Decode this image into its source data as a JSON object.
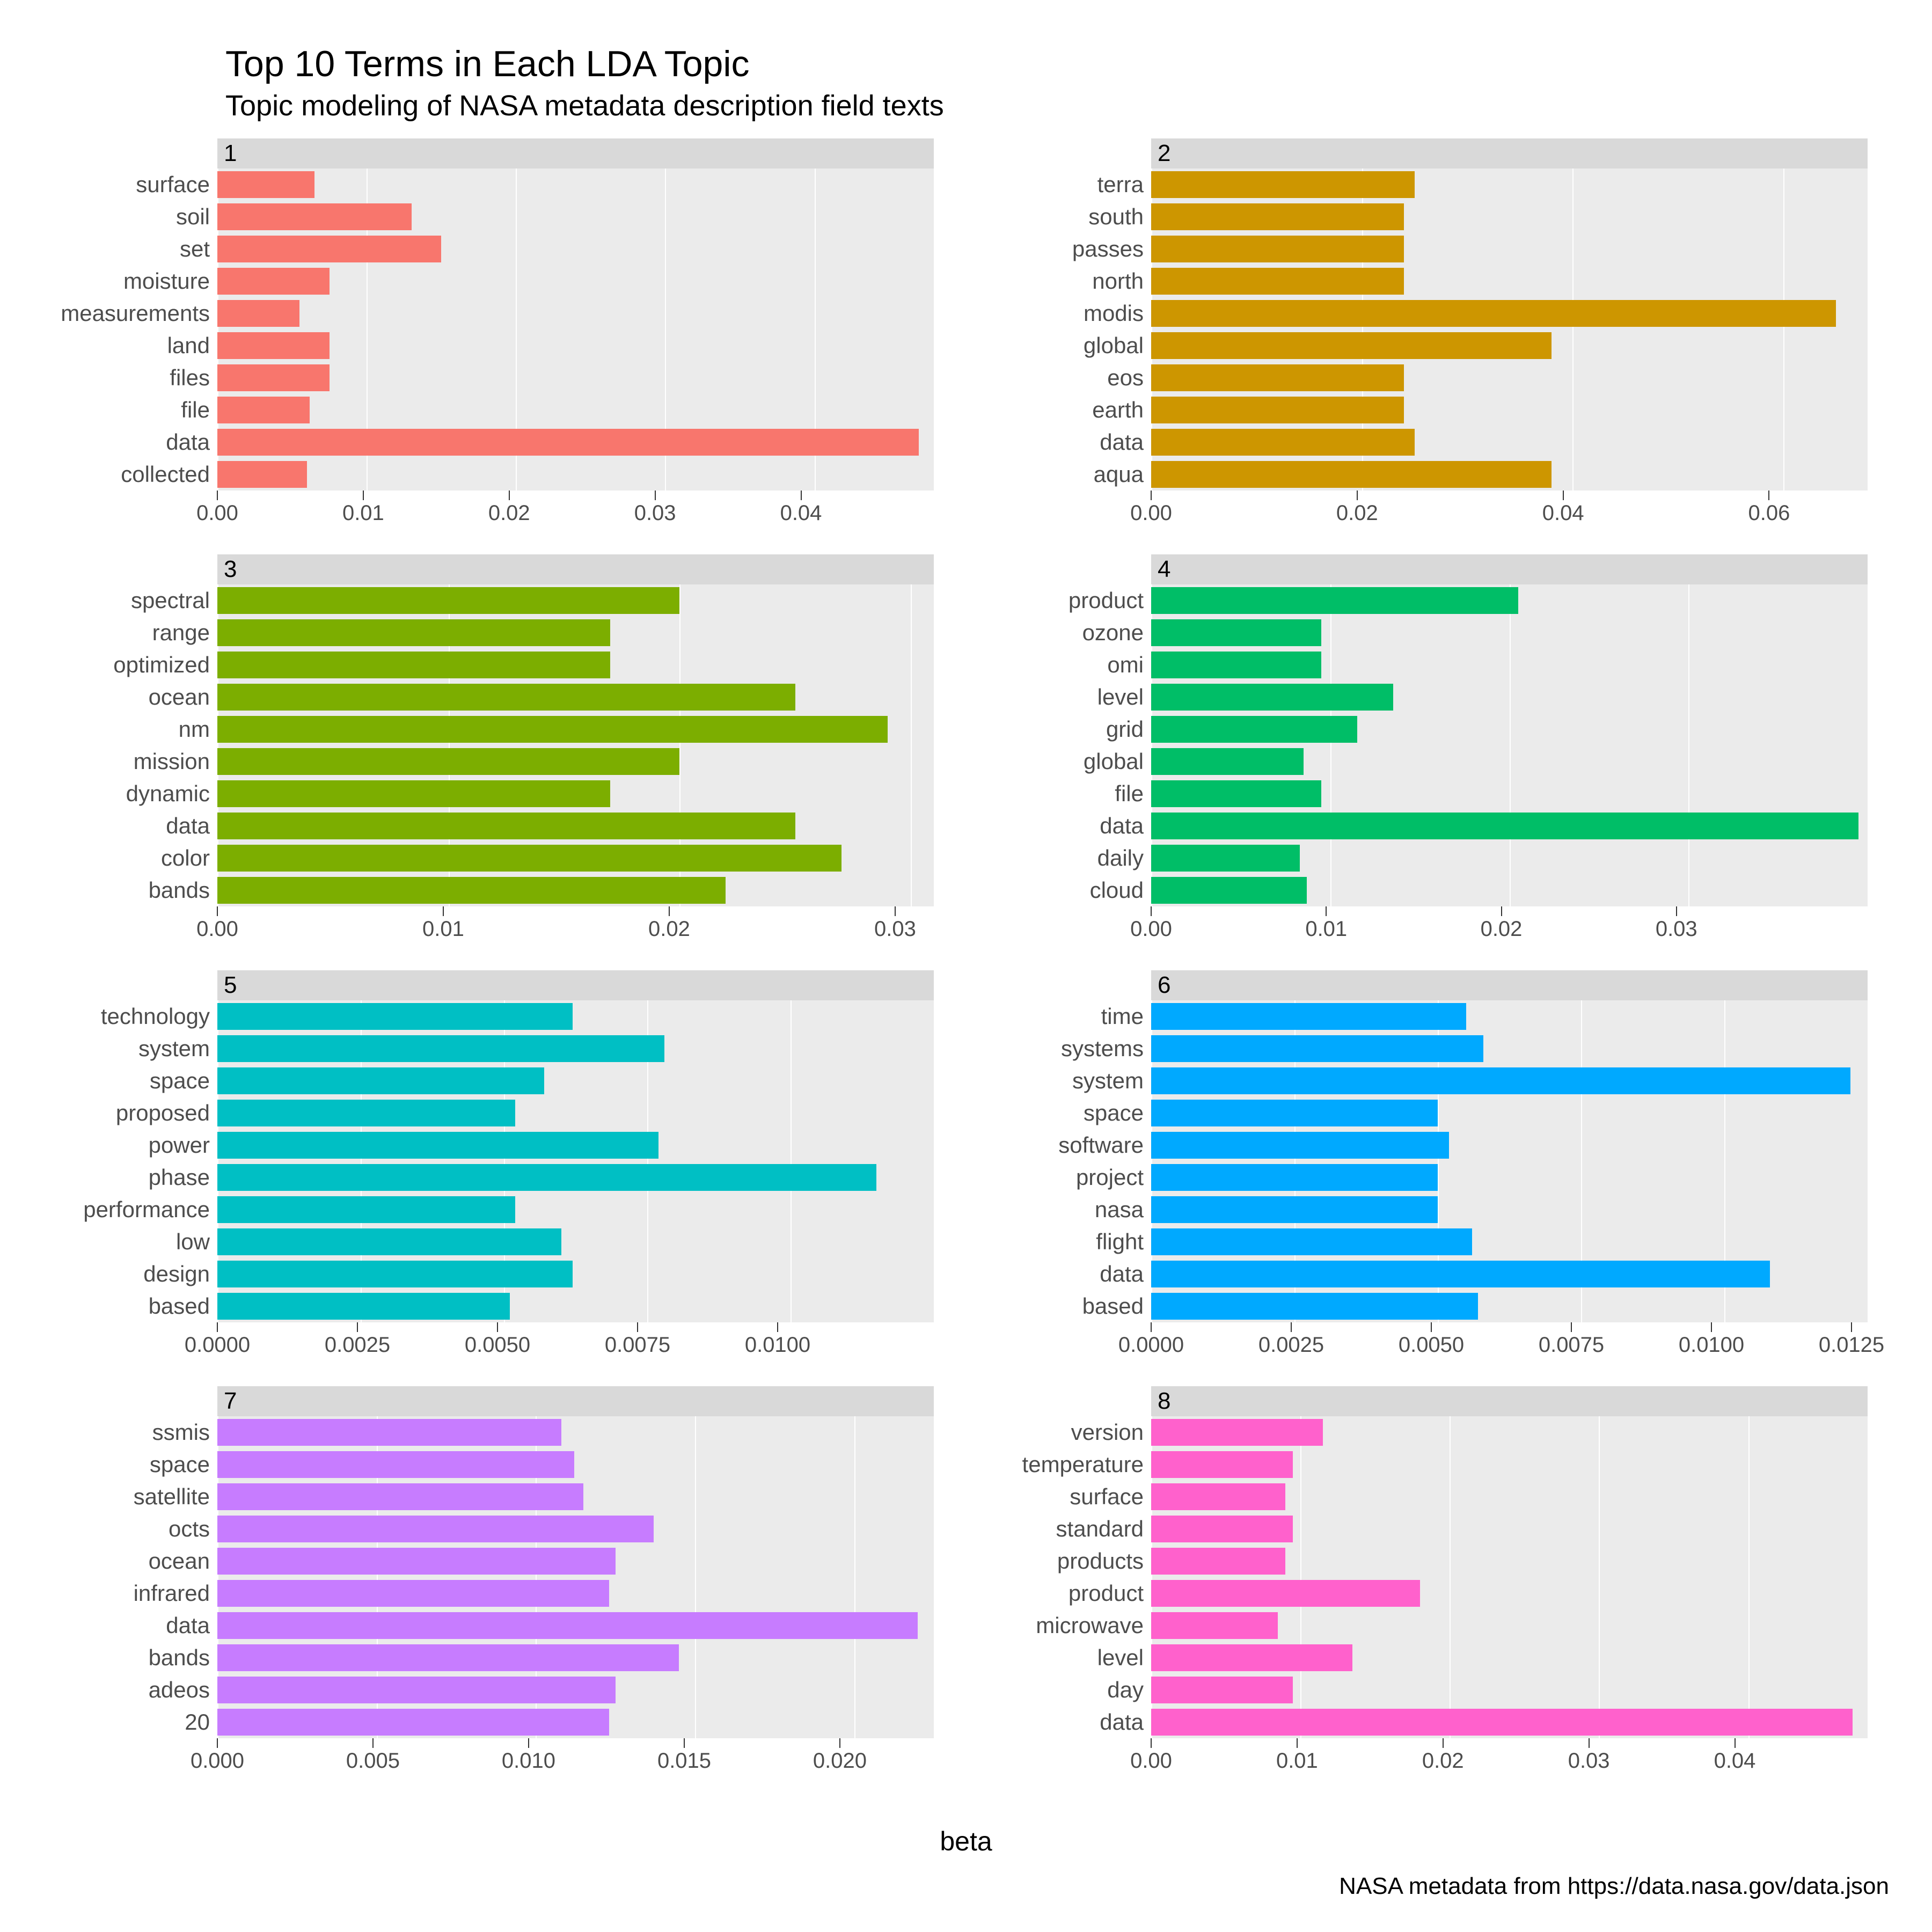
{
  "title": "Top 10 Terms in Each LDA Topic",
  "subtitle": "Topic modeling of NASA metadata description field texts",
  "x_axis_title": "beta",
  "caption": "NASA metadata from https://data.nasa.gov/data.json",
  "background_color": "#ffffff",
  "panel_background": "#ebebeb",
  "strip_background": "#d9d9d9",
  "grid_color": "#ffffff",
  "text_color": "#4d4d4d",
  "title_fontsize": 68,
  "subtitle_fontsize": 54,
  "label_fontsize": 42,
  "panels": [
    {
      "facet": "1",
      "color": "#f8766d",
      "xmax": 0.048,
      "xticks": [
        0.0,
        0.01,
        0.02,
        0.03,
        0.04
      ],
      "xtick_labels": [
        "0.00",
        "0.01",
        "0.02",
        "0.03",
        "0.04"
      ],
      "terms": [
        "surface",
        "soil",
        "set",
        "moisture",
        "measurements",
        "land",
        "files",
        "file",
        "data",
        "collected"
      ],
      "values": [
        0.0065,
        0.013,
        0.015,
        0.0075,
        0.0055,
        0.0075,
        0.0075,
        0.0062,
        0.047,
        0.006
      ]
    },
    {
      "facet": "2",
      "color": "#cd9600",
      "xmax": 0.068,
      "xticks": [
        0.0,
        0.02,
        0.04,
        0.06
      ],
      "xtick_labels": [
        "0.00",
        "0.02",
        "0.04",
        "0.06"
      ],
      "terms": [
        "terra",
        "south",
        "passes",
        "north",
        "modis",
        "global",
        "eos",
        "earth",
        "data",
        "aqua"
      ],
      "values": [
        0.025,
        0.024,
        0.024,
        0.024,
        0.065,
        0.038,
        0.024,
        0.024,
        0.025,
        0.038
      ]
    },
    {
      "facet": "3",
      "color": "#7cae00",
      "xmax": 0.031,
      "xticks": [
        0.0,
        0.01,
        0.02,
        0.03
      ],
      "xtick_labels": [
        "0.00",
        "0.01",
        "0.02",
        "0.03"
      ],
      "terms": [
        "spectral",
        "range",
        "optimized",
        "ocean",
        "nm",
        "mission",
        "dynamic",
        "data",
        "color",
        "bands"
      ],
      "values": [
        0.02,
        0.017,
        0.017,
        0.025,
        0.029,
        0.02,
        0.017,
        0.025,
        0.027,
        0.022
      ]
    },
    {
      "facet": "4",
      "color": "#00be67",
      "xmax": 0.04,
      "xticks": [
        0.0,
        0.01,
        0.02,
        0.03
      ],
      "xtick_labels": [
        "0.00",
        "0.01",
        "0.02",
        "0.03"
      ],
      "terms": [
        "product",
        "ozone",
        "omi",
        "level",
        "grid",
        "global",
        "file",
        "data",
        "daily",
        "cloud"
      ],
      "values": [
        0.0205,
        0.0095,
        0.0095,
        0.0135,
        0.0115,
        0.0085,
        0.0095,
        0.0395,
        0.0083,
        0.0087
      ]
    },
    {
      "facet": "5",
      "color": "#00bfc4",
      "xmax": 0.0125,
      "xticks": [
        0.0,
        0.0025,
        0.005,
        0.0075,
        0.01
      ],
      "xtick_labels": [
        "0.0000",
        "0.0025",
        "0.0050",
        "0.0075",
        "0.0100"
      ],
      "terms": [
        "technology",
        "system",
        "space",
        "proposed",
        "power",
        "phase",
        "performance",
        "low",
        "design",
        "based"
      ],
      "values": [
        0.0062,
        0.0078,
        0.0057,
        0.0052,
        0.0077,
        0.0115,
        0.0052,
        0.006,
        0.0062,
        0.0051
      ]
    },
    {
      "facet": "6",
      "color": "#00a9ff",
      "xmax": 0.0125,
      "xticks": [
        0.0,
        0.0025,
        0.005,
        0.0075,
        0.01,
        0.0125
      ],
      "xtick_labels": [
        "0.0000",
        "0.0025",
        "0.0050",
        "0.0075",
        "0.0100",
        "0.0125"
      ],
      "terms": [
        "time",
        "systems",
        "system",
        "space",
        "software",
        "project",
        "nasa",
        "flight",
        "data",
        "based"
      ],
      "values": [
        0.0055,
        0.0058,
        0.0122,
        0.005,
        0.0052,
        0.005,
        0.005,
        0.0056,
        0.0108,
        0.0057
      ]
    },
    {
      "facet": "7",
      "color": "#c77cff",
      "xmax": 0.0225,
      "xticks": [
        0.0,
        0.005,
        0.01,
        0.015,
        0.02
      ],
      "xtick_labels": [
        "0.000",
        "0.005",
        "0.010",
        "0.015",
        "0.020"
      ],
      "terms": [
        "ssmis",
        "space",
        "satellite",
        "octs",
        "ocean",
        "infrared",
        "data",
        "bands",
        "adeos",
        "20"
      ],
      "values": [
        0.0108,
        0.0112,
        0.0115,
        0.0137,
        0.0125,
        0.0123,
        0.022,
        0.0145,
        0.0125,
        0.0123
      ]
    },
    {
      "facet": "8",
      "color": "#ff61cc",
      "xmax": 0.048,
      "xticks": [
        0.0,
        0.01,
        0.02,
        0.03,
        0.04
      ],
      "xtick_labels": [
        "0.00",
        "0.01",
        "0.02",
        "0.03",
        "0.04"
      ],
      "terms": [
        "version",
        "temperature",
        "surface",
        "standard",
        "products",
        "product",
        "microwave",
        "level",
        "day",
        "data"
      ],
      "values": [
        0.0115,
        0.0095,
        0.009,
        0.0095,
        0.009,
        0.018,
        0.0085,
        0.0135,
        0.0095,
        0.047
      ]
    }
  ]
}
